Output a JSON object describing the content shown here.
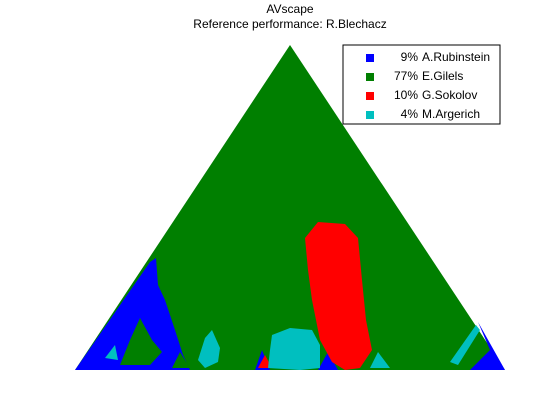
{
  "chart_data": {
    "type": "scape",
    "title": "AVscape",
    "subtitle": "Reference performance: R.Blechacz",
    "categories": [
      "A.Rubinstein",
      "E.Gilels",
      "G.Sokolov",
      "M.Argerich"
    ],
    "values": [
      9,
      77,
      10,
      4
    ],
    "value_labels": [
      "9%",
      "77%",
      "10%",
      "4%"
    ],
    "colors": [
      "#0000ff",
      "#007f00",
      "#ff0000",
      "#00bfbf"
    ]
  }
}
